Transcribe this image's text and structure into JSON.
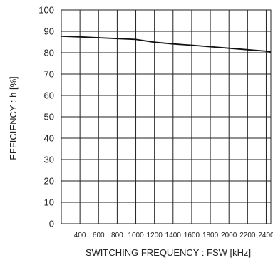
{
  "chart_data": {
    "type": "line",
    "xlabel": "SWITCHING FREQUENCY : FSW [kHz]",
    "ylabel": "EFFICIENCY : h [%]",
    "xlim": [
      200,
      2450
    ],
    "ylim": [
      0,
      100
    ],
    "x_ticks": [
      "400",
      "600",
      "800",
      "1000",
      "1200",
      "1400",
      "1600",
      "1800",
      "2000",
      "2200",
      "2400"
    ],
    "y_ticks": [
      "0",
      "10",
      "20",
      "30",
      "40",
      "50",
      "60",
      "70",
      "80",
      "90",
      "100"
    ],
    "grid": true,
    "series": [
      {
        "x": [
          200,
          400,
          600,
          800,
          1000,
          1200,
          1400,
          1600,
          1800,
          2000,
          2200,
          2400,
          2450
        ],
        "values": [
          87.7,
          87.4,
          87.0,
          86.6,
          86.2,
          84.9,
          84.1,
          83.5,
          82.8,
          82.1,
          81.4,
          80.7,
          80.4
        ]
      }
    ]
  }
}
